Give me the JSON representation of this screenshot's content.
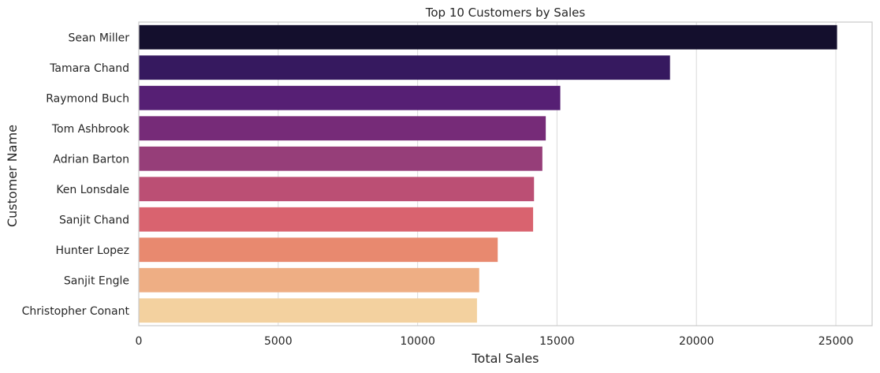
{
  "chart_data": {
    "type": "bar",
    "orientation": "horizontal",
    "title": "Top 10 Customers by Sales",
    "xlabel": "Total Sales",
    "ylabel": "Customer Name",
    "categories": [
      "Sean Miller",
      "Tamara Chand",
      "Raymond Buch",
      "Tom Ashbrook",
      "Adrian Barton",
      "Ken Lonsdale",
      "Sanjit Chand",
      "Hunter Lopez",
      "Sanjit Engle",
      "Christopher Conant"
    ],
    "values": [
      25043,
      19052,
      15117,
      14596,
      14474,
      14175,
      14142,
      12873,
      12209,
      12129
    ],
    "xlim": [
      0,
      26300
    ],
    "xticks": [
      0,
      5000,
      10000,
      15000,
      20000,
      25000
    ],
    "grid": "vertical",
    "legend": "none",
    "colors": [
      "#140f2d",
      "#36195f",
      "#561f74",
      "#762b78",
      "#963e79",
      "#bb4f74",
      "#d9636f",
      "#e8896f",
      "#eeae84",
      "#f3d19f"
    ]
  }
}
